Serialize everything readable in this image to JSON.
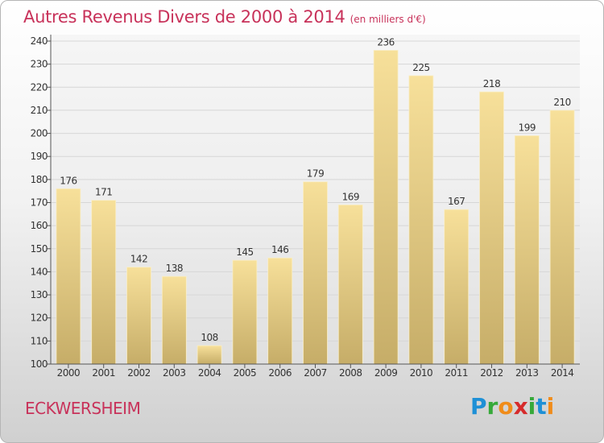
{
  "title": "Autres Revenus Divers de 2000 à 2014",
  "subtitle": "(en milliers d'€)",
  "commune": "ECKWERSHEIM",
  "logo": {
    "letters": [
      "P",
      "r",
      "o",
      "x",
      "i",
      "t",
      "i"
    ],
    "colors": [
      "#1e90d6",
      "#37a93a",
      "#f08c1a",
      "#d62b2b",
      "#37a93a",
      "#1e90d6",
      "#f08c1a"
    ]
  },
  "colors": {
    "bar_top": "#f7e09a",
    "bar_bottom": "#c6ad68",
    "accent": "#c8325a"
  },
  "chart_data": {
    "type": "bar",
    "categories": [
      "2000",
      "2001",
      "2002",
      "2003",
      "2004",
      "2005",
      "2006",
      "2007",
      "2008",
      "2009",
      "2010",
      "2011",
      "2012",
      "2013",
      "2014"
    ],
    "values": [
      176,
      171,
      142,
      138,
      108,
      145,
      146,
      179,
      169,
      236,
      225,
      167,
      218,
      199,
      210
    ],
    "ylim": [
      100,
      240
    ],
    "yticks": [
      100,
      110,
      120,
      130,
      140,
      150,
      160,
      170,
      180,
      190,
      200,
      210,
      220,
      230,
      240
    ],
    "grid": true
  }
}
